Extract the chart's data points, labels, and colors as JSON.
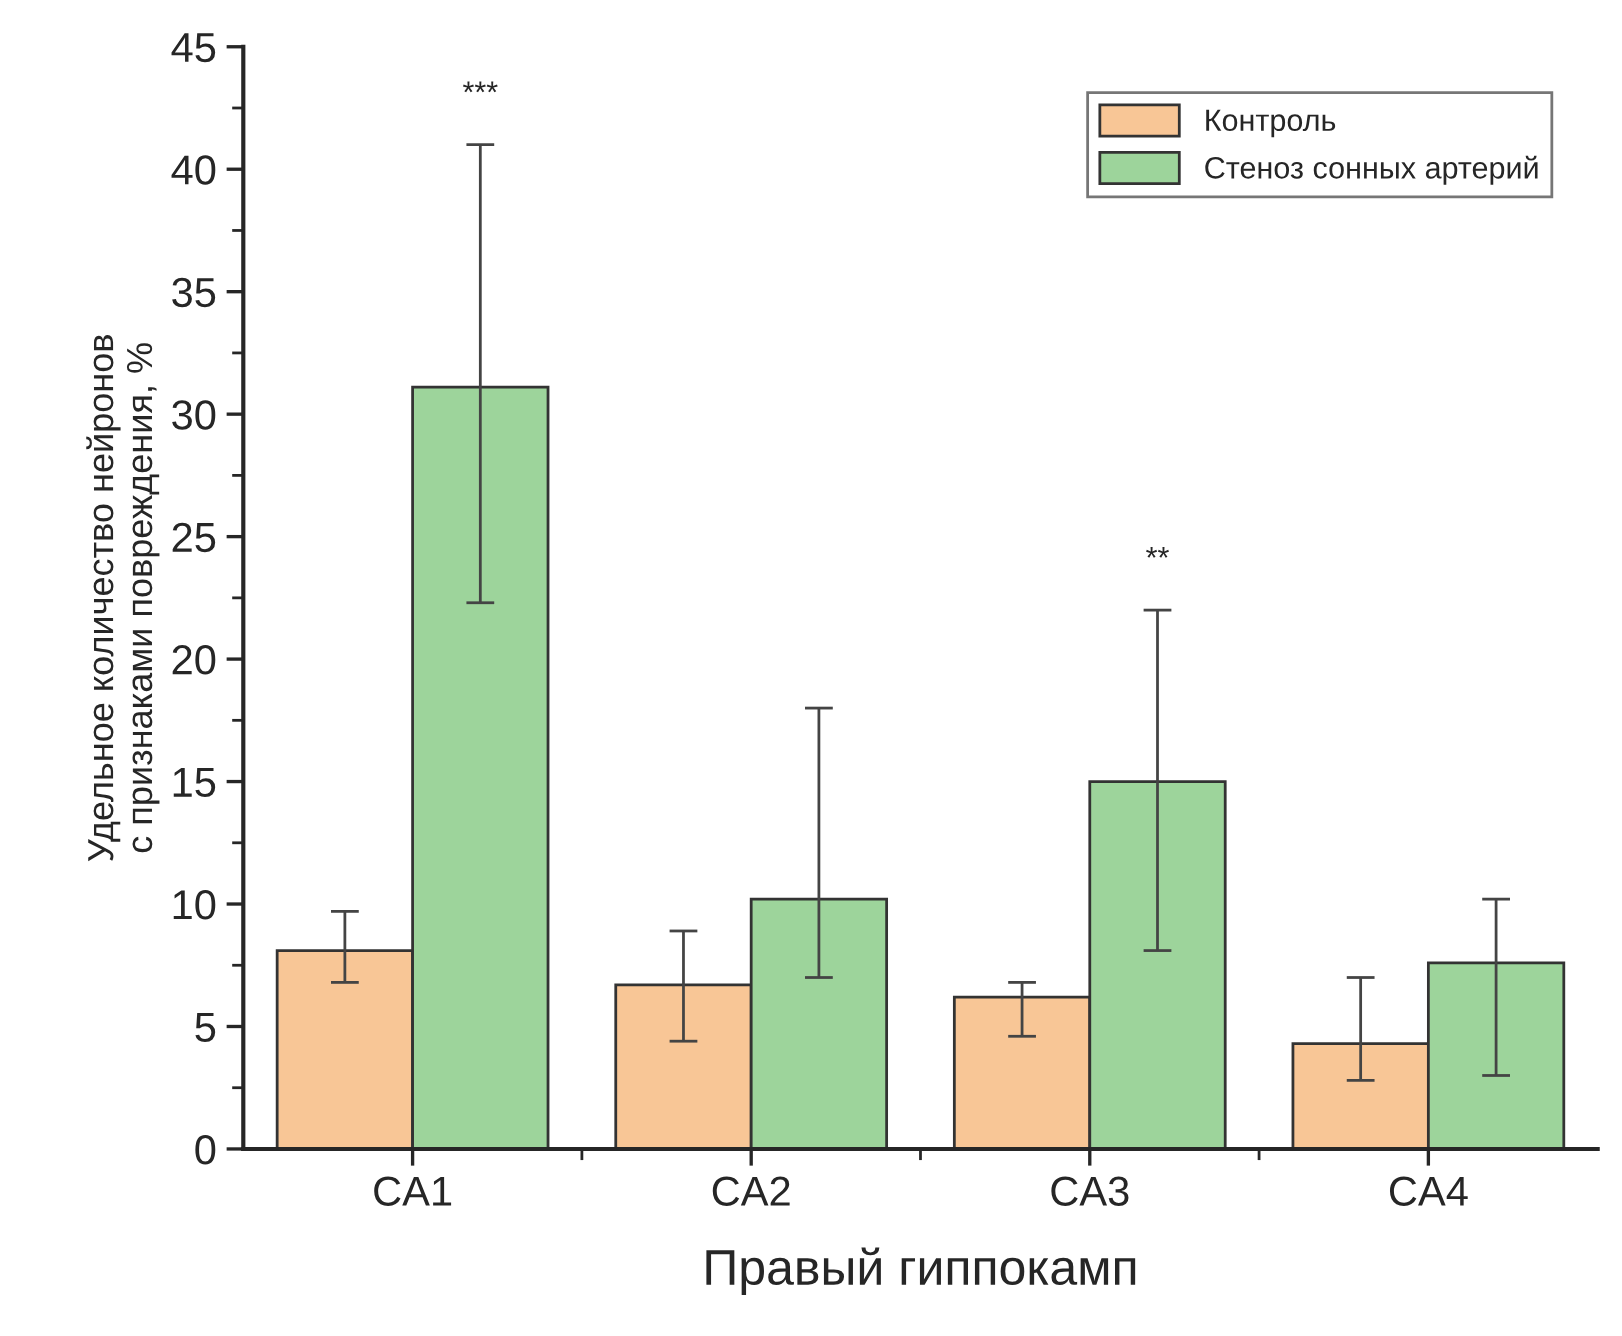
{
  "chart_data": {
    "type": "bar",
    "xlabel": "Правый гиппокамп",
    "ylabel": "Удельное количество нейронов\nс признаками повреждения, %",
    "categories": [
      "CA1",
      "CA2",
      "CA3",
      "CA4"
    ],
    "series": [
      {
        "name": "Контроль",
        "color": "#f8c696",
        "values": [
          8.1,
          6.7,
          6.2,
          4.3
        ],
        "errors": [
          [
            6.8,
            9.7
          ],
          [
            4.4,
            8.9
          ],
          [
            4.6,
            6.8
          ],
          [
            2.8,
            7.0
          ]
        ]
      },
      {
        "name": "Стеноз сонных артерий",
        "color": "#9dd49b",
        "values": [
          31.1,
          10.2,
          15.0,
          7.6
        ],
        "errors": [
          [
            22.3,
            41.0
          ],
          [
            7.0,
            18.0
          ],
          [
            8.1,
            22.0
          ],
          [
            3.0,
            10.2
          ]
        ]
      }
    ],
    "ylim": [
      0,
      45
    ],
    "yticks": [
      0,
      5,
      10,
      15,
      20,
      25,
      30,
      35,
      40,
      45
    ],
    "annotations": [
      "***",
      "**"
    ],
    "legend": "top right",
    "grid": false
  }
}
